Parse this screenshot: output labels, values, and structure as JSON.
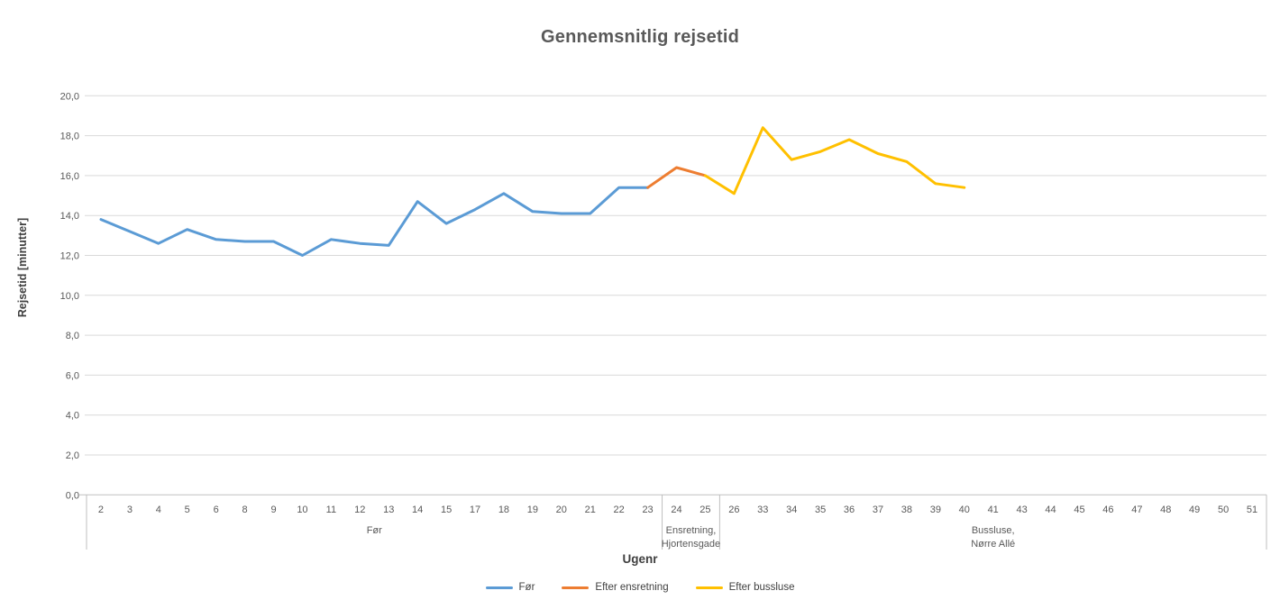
{
  "chart_data": {
    "type": "line",
    "title": "Gennemsnitlig rejsetid",
    "xlabel": "Ugenr",
    "ylabel": "Rejsetid [minutter]",
    "ylim": [
      0,
      20
    ],
    "ytick_step": 2,
    "ytick_labels": [
      "0,0",
      "2,0",
      "4,0",
      "6,0",
      "8,0",
      "10,0",
      "12,0",
      "14,0",
      "16,0",
      "18,0",
      "20,0"
    ],
    "grid": true,
    "legend_position": "bottom",
    "categories": [
      "2",
      "3",
      "4",
      "5",
      "6",
      "8",
      "9",
      "10",
      "11",
      "12",
      "13",
      "14",
      "15",
      "17",
      "18",
      "19",
      "20",
      "21",
      "22",
      "23",
      "24",
      "25",
      "26",
      "33",
      "34",
      "35",
      "36",
      "37",
      "38",
      "39",
      "40",
      "41",
      "43",
      "44",
      "45",
      "46",
      "47",
      "48",
      "49",
      "50",
      "51"
    ],
    "category_groups": [
      {
        "label_lines": [
          "Før"
        ],
        "start_index": 0,
        "end_index": 19
      },
      {
        "label_lines": [
          "Ensretning,",
          "Hjortensgade"
        ],
        "start_index": 20,
        "end_index": 21
      },
      {
        "label_lines": [
          "Bussluse,",
          "Nørre Allé"
        ],
        "start_index": 22,
        "end_index": 40
      }
    ],
    "series": [
      {
        "name": "Før",
        "color": "#5B9BD5",
        "points": [
          [
            "2",
            13.8
          ],
          [
            "3",
            13.2
          ],
          [
            "4",
            12.6
          ],
          [
            "5",
            13.3
          ],
          [
            "6",
            12.8
          ],
          [
            "8",
            12.7
          ],
          [
            "9",
            12.7
          ],
          [
            "10",
            12.0
          ],
          [
            "11",
            12.8
          ],
          [
            "12",
            12.6
          ],
          [
            "13",
            12.5
          ],
          [
            "14",
            14.7
          ],
          [
            "15",
            13.6
          ],
          [
            "17",
            14.3
          ],
          [
            "18",
            15.1
          ],
          [
            "19",
            14.2
          ],
          [
            "20",
            14.1
          ],
          [
            "21",
            14.1
          ],
          [
            "22",
            15.4
          ],
          [
            "23",
            15.4
          ]
        ]
      },
      {
        "name": "Efter ensretning",
        "color": "#ED7D31",
        "points": [
          [
            "23",
            15.4
          ],
          [
            "24",
            16.4
          ],
          [
            "25",
            16.0
          ]
        ]
      },
      {
        "name": "Efter bussluse",
        "color": "#FFC000",
        "points": [
          [
            "25",
            16.0
          ],
          [
            "26",
            15.1
          ],
          [
            "33",
            18.4
          ],
          [
            "34",
            16.8
          ],
          [
            "35",
            17.2
          ],
          [
            "36",
            17.8
          ],
          [
            "37",
            17.1
          ],
          [
            "38",
            16.7
          ],
          [
            "39",
            15.6
          ],
          [
            "40",
            15.4
          ]
        ]
      }
    ],
    "colors": {
      "text": "#595959",
      "gridline": "#D9D9D9",
      "axis_line": "#BFBFBF"
    }
  }
}
